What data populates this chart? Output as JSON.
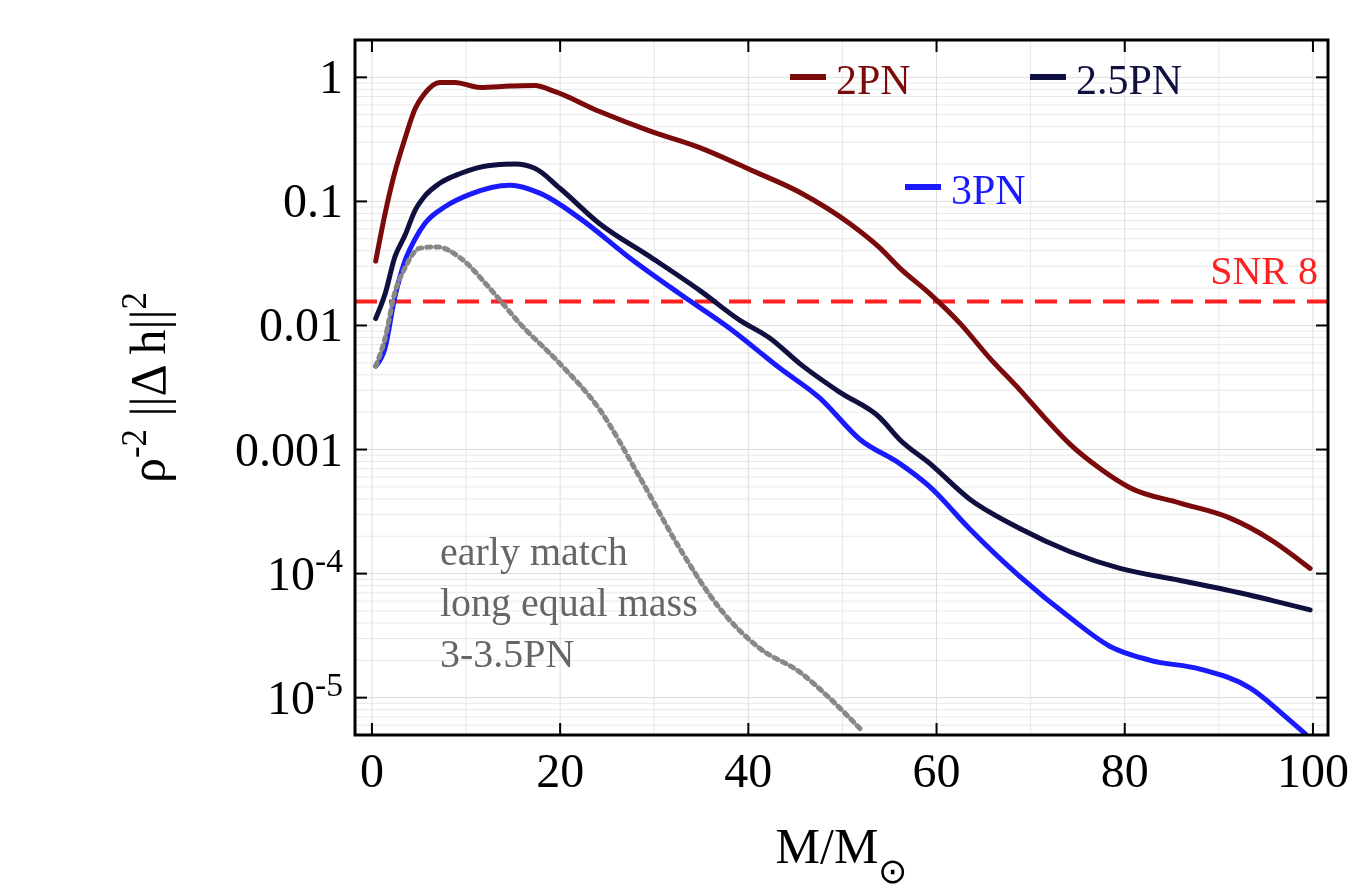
{
  "chart_data": {
    "type": "line",
    "xlabel": "M/M$_{⊙}$",
    "ylabel": "ρ$^{-2}$ ||Δ h||$^{2}$",
    "log": "y",
    "grid": true,
    "legend": "top right",
    "line_style": "solid",
    "xlim": [
      -1.8,
      101.6
    ],
    "xticks": [
      0,
      20,
      40,
      60,
      80,
      100
    ],
    "ylim": [
      5e-06,
      2
    ],
    "yticks": [
      1,
      0.1,
      0.01,
      0.001,
      {
        "value": 0.0001,
        "label": "10$^{-4}$"
      },
      {
        "value": 1e-05,
        "label": "10$^{-5}$"
      }
    ],
    "series": [
      {
        "name": "2PN",
        "color": "#7b0a0a",
        "x": [
          0.4,
          1.4,
          2.4,
          3.5,
          4.6,
          5.6,
          7.2,
          8.8,
          11.5,
          14.7,
          17.3,
          19.4,
          24.2,
          29.5,
          34.9,
          40.2,
          45.5,
          50.8,
          54,
          56.1,
          59.3,
          62.5,
          65.7,
          68.9,
          71.5,
          74.2,
          77.4,
          80.6,
          85.9,
          91.2,
          95.4,
          99.7
        ],
        "values": [
          0.033,
          0.08,
          0.168,
          0.32,
          0.56,
          0.74,
          0.91,
          0.91,
          0.83,
          0.85,
          0.86,
          0.77,
          0.53,
          0.37,
          0.27,
          0.18,
          0.118,
          0.066,
          0.042,
          0.029,
          0.018,
          0.0104,
          0.0054,
          0.003,
          0.0018,
          0.0011,
          0.0007,
          0.00049,
          0.00037,
          0.00028,
          0.00019,
          0.00011
        ]
      },
      {
        "name": "2.5PN",
        "color": "#101040",
        "x": [
          0.4,
          1.4,
          2.4,
          3.5,
          4.6,
          5.6,
          7.2,
          9.4,
          12.5,
          15.2,
          17.3,
          20,
          24.2,
          29.5,
          34.9,
          39.1,
          42.3,
          45.5,
          49.7,
          54,
          56.1,
          59.3,
          63.5,
          68.9,
          74.2,
          79.5,
          85.9,
          92.2,
          99.7
        ],
        "values": [
          0.0114,
          0.018,
          0.035,
          0.053,
          0.085,
          0.11,
          0.14,
          0.168,
          0.195,
          0.2,
          0.185,
          0.127,
          0.066,
          0.036,
          0.019,
          0.011,
          0.0079,
          0.0049,
          0.0029,
          0.0018,
          0.0012,
          0.00077,
          0.0004,
          0.00023,
          0.00015,
          0.00011,
          8.8e-05,
          7e-05,
          5.1e-05
        ]
      },
      {
        "name": "3PN",
        "color": "#1a1aff",
        "x": [
          0.4,
          1.4,
          2.4,
          3.5,
          4.6,
          5.6,
          7.8,
          10.4,
          14.7,
          17.9,
          22.1,
          27.4,
          32.7,
          38,
          43.4,
          47.6,
          51.9,
          56.1,
          59.3,
          63.5,
          68.9,
          74.2,
          78.4,
          82.7,
          88,
          93.3,
          97.6,
          99.2
        ],
        "values": [
          0.0047,
          0.0066,
          0.0165,
          0.033,
          0.05,
          0.066,
          0.091,
          0.114,
          0.135,
          0.116,
          0.073,
          0.035,
          0.018,
          0.0095,
          0.0045,
          0.0026,
          0.0012,
          0.00077,
          0.0005,
          0.00023,
          9.4e-05,
          4.4e-05,
          2.6e-05,
          2e-05,
          1.7e-05,
          1.2e-05,
          6.5e-06,
          5.1e-06
        ]
      },
      {
        "color": "#888888",
        "line_style": "dotted",
        "x": [
          0.4,
          1.4,
          2.4,
          3.5,
          5.1,
          6.9,
          9.4,
          12.5,
          15.7,
          20,
          24.2,
          28.5,
          32.7,
          37,
          41.2,
          45.5,
          48.7,
          51.9
        ],
        "values": [
          0.0047,
          0.0079,
          0.018,
          0.029,
          0.042,
          0.043,
          0.035,
          0.02,
          0.0104,
          0.0049,
          0.0021,
          0.00059,
          0.00016,
          5.2e-05,
          2.5e-05,
          1.6e-05,
          9.8e-06,
          5.6e-06
        ]
      }
    ],
    "ref_lines": [
      {
        "axis": "y",
        "value": 0.0156,
        "label": "SNR 8",
        "color": "#ff2020",
        "line_style": "dashed"
      }
    ],
    "annotations": [
      "early match\nlong equal mass\n3-3.5PN"
    ]
  }
}
